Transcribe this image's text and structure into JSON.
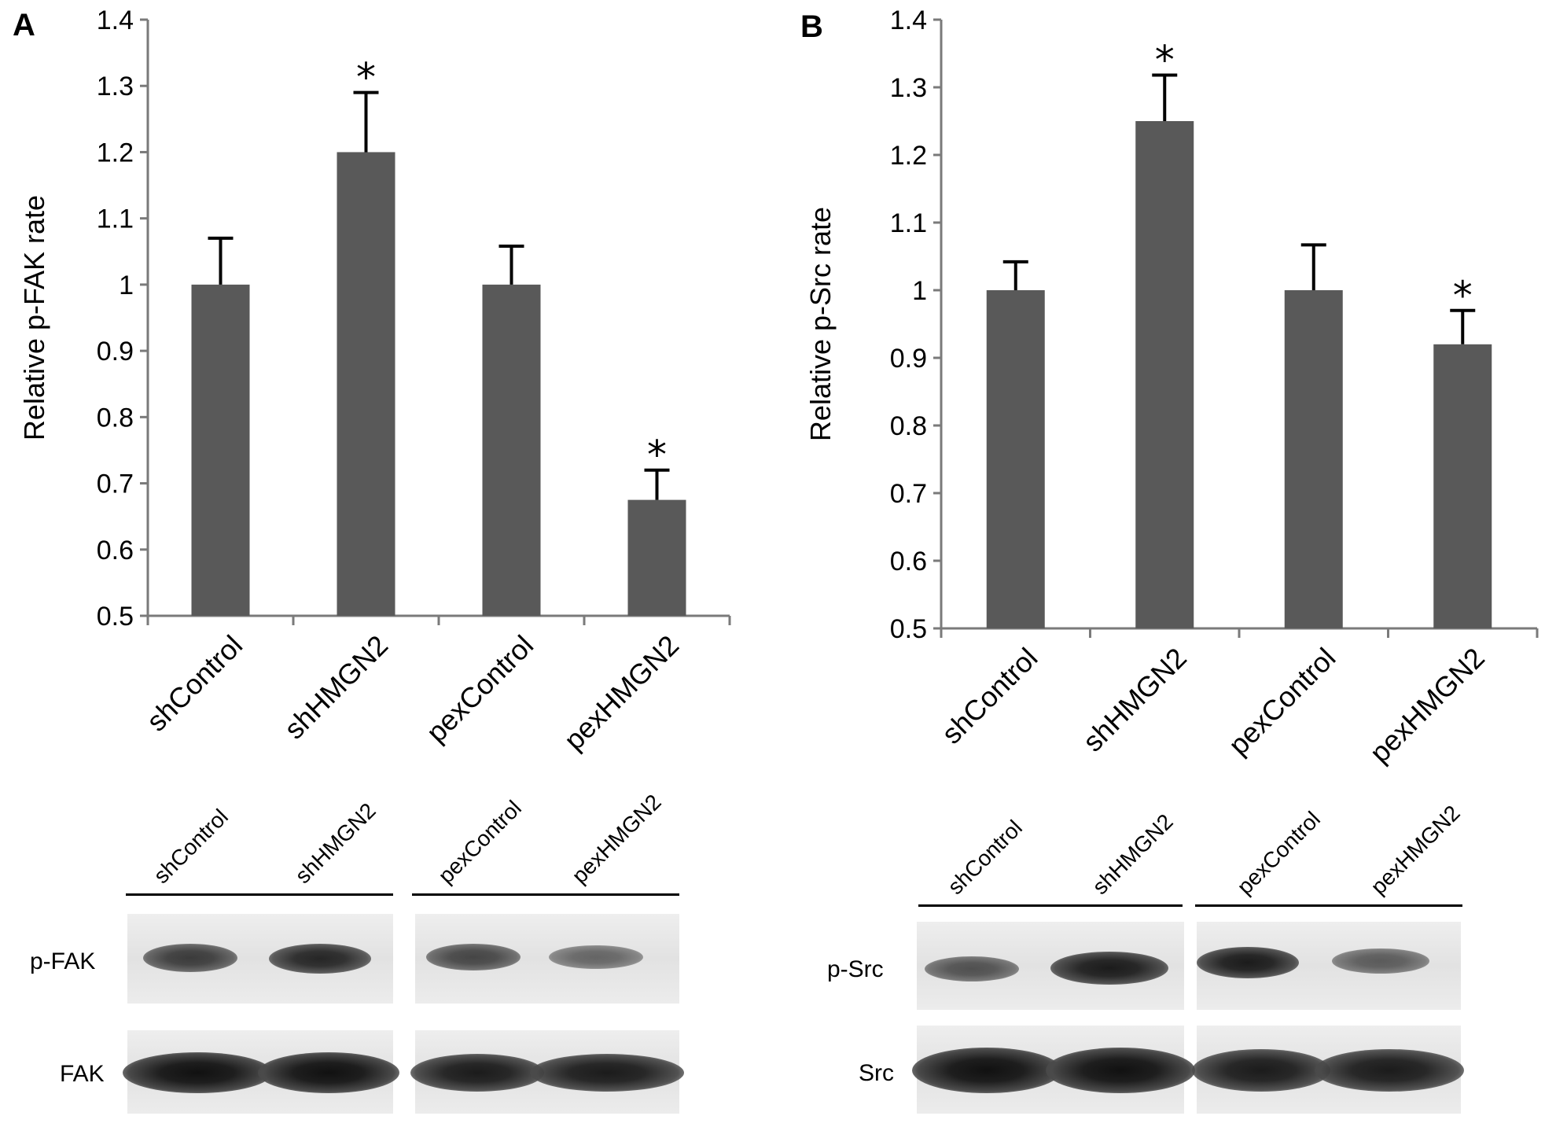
{
  "panels": [
    {
      "letter": "A",
      "chart_data": {
        "type": "bar",
        "categories": [
          "shControl",
          "shHMGN2",
          "pexControl",
          "pexHMGN2"
        ],
        "values": [
          1.0,
          1.2,
          1.0,
          0.675
        ],
        "errors": [
          0.07,
          0.09,
          0.058,
          0.045
        ],
        "significant": [
          false,
          true,
          false,
          true
        ],
        "significance_marker": "*",
        "ylabel": "Relative p-FAK rate",
        "ylim": [
          0.5,
          1.4
        ],
        "yticks": [
          "0.5",
          "0.6",
          "0.7",
          "0.8",
          "0.9",
          "1",
          "1.1",
          "1.2",
          "1.3",
          "1.4"
        ],
        "bar_color": "#595959",
        "grid": false
      },
      "blot": {
        "lanes": [
          "shControl",
          "shHMGN2",
          "pexControl",
          "pexHMGN2"
        ],
        "rows": [
          "p-FAK",
          "FAK"
        ],
        "band_intensity": {
          "p-FAK": [
            0.8,
            0.9,
            0.75,
            0.6
          ],
          "FAK": [
            1.0,
            1.0,
            0.95,
            0.95
          ]
        }
      }
    },
    {
      "letter": "B",
      "chart_data": {
        "type": "bar",
        "categories": [
          "shControl",
          "shHMGN2",
          "pexControl",
          "pexHMGN2"
        ],
        "values": [
          1.0,
          1.25,
          1.0,
          0.92
        ],
        "errors": [
          0.042,
          0.068,
          0.067,
          0.05
        ],
        "significant": [
          false,
          true,
          false,
          true
        ],
        "significance_marker": "*",
        "ylabel": "Relative p-Src rate",
        "ylim": [
          0.5,
          1.4
        ],
        "yticks": [
          "0.5",
          "0.6",
          "0.7",
          "0.8",
          "0.9",
          "1",
          "1.1",
          "1.2",
          "1.3",
          "1.4"
        ],
        "bar_color": "#595959",
        "grid": false
      },
      "blot": {
        "lanes": [
          "shControl",
          "shHMGN2",
          "pexControl",
          "pexHMGN2"
        ],
        "rows": [
          "p-Src",
          "Src"
        ],
        "band_intensity": {
          "p-Src": [
            0.7,
            0.95,
            0.95,
            0.65
          ],
          "Src": [
            1.0,
            1.0,
            0.95,
            0.95
          ]
        }
      }
    }
  ]
}
